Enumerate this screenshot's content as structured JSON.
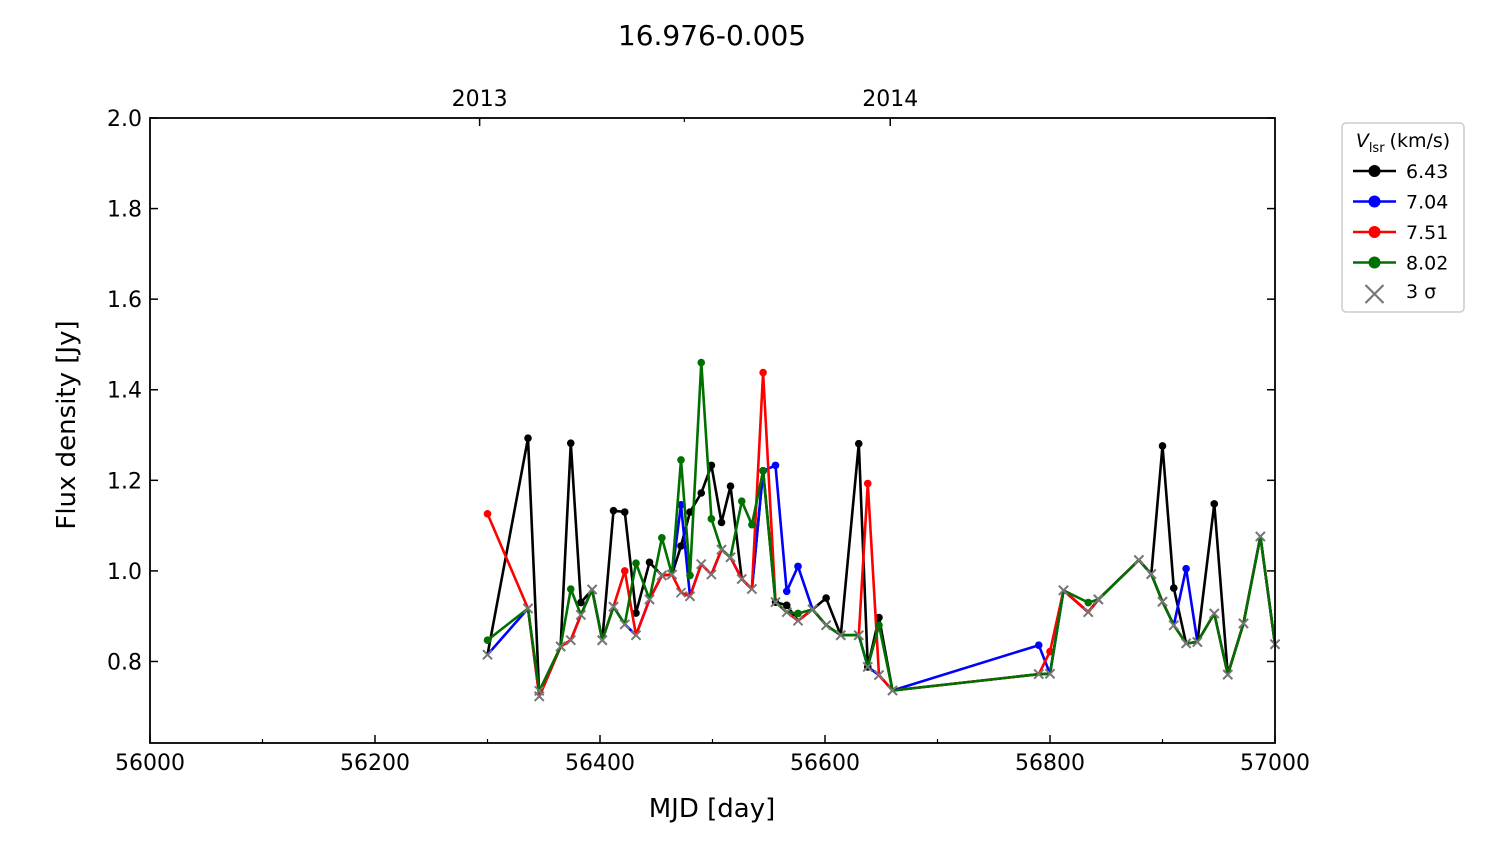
{
  "chart_data": {
    "type": "line",
    "title": "16.976-0.005",
    "xlabel": "MJD [day]",
    "ylabel": "Flux density [Jy]",
    "xlim": [
      56000,
      57000
    ],
    "ylim": [
      0.62,
      2.0
    ],
    "x_ticks": [
      56000,
      56200,
      56400,
      56600,
      56800,
      57000
    ],
    "x_minor_step": 100,
    "y_ticks": [
      0.8,
      1.0,
      1.2,
      1.4,
      1.6,
      1.8,
      2.0
    ],
    "y_tick_labels": [
      "0.8",
      "1.0",
      "1.2",
      "1.4",
      "1.6",
      "1.8",
      "2.0"
    ],
    "top_axis": {
      "ticks": [
        {
          "label": "2013",
          "mjd": 56293
        },
        {
          "label": "2014",
          "mjd": 56658
        }
      ],
      "minor": [
        56475
      ]
    },
    "legend": {
      "position": "outside-right-top",
      "title_symbol": "V",
      "title_subscript": "lsr",
      "title_unit": "(km/s)",
      "entries": [
        {
          "label": "6.43",
          "color": "#000000"
        },
        {
          "label": "7.04",
          "color": "#0000ff"
        },
        {
          "label": "7.51",
          "color": "#ff0000"
        },
        {
          "label": "8.02",
          "color": "#007000"
        }
      ],
      "sigma_label": "3 σ",
      "sigma_color": "#777777"
    },
    "grid": false,
    "series": [
      {
        "name": "6.43",
        "color": "#000000",
        "x": [
          56300,
          56336,
          56346,
          56365,
          56374,
          56383,
          56393,
          56402,
          56412,
          56422,
          56432,
          56444,
          56455,
          56464,
          56472,
          56480,
          56490,
          56499,
          56508,
          56516,
          56526,
          56535,
          56545,
          56556,
          56566,
          56576,
          56589,
          56601,
          56614,
          56630,
          56638,
          56648,
          56660,
          56790,
          56800,
          56812,
          56834,
          56843,
          56879,
          56890,
          56900,
          56910,
          56921,
          56931,
          56946,
          56958,
          56972,
          56987,
          57000
        ],
        "y": [
          0.815,
          1.293,
          0.723,
          0.833,
          1.282,
          0.93,
          0.959,
          0.847,
          1.133,
          1.13,
          0.907,
          1.019,
          0.99,
          0.992,
          1.055,
          1.13,
          1.172,
          1.233,
          1.107,
          1.187,
          0.982,
          0.96,
          1.221,
          0.931,
          0.924,
          0.89,
          0.915,
          0.94,
          0.858,
          1.281,
          0.788,
          0.897,
          0.736,
          0.772,
          0.773,
          0.957,
          0.909,
          0.937,
          1.024,
          0.993,
          1.276,
          0.962,
          0.84,
          0.843,
          1.148,
          0.771,
          0.884,
          1.076,
          0.838
        ],
        "sigma": [
          true,
          false,
          true,
          true,
          false,
          false,
          true,
          true,
          false,
          false,
          false,
          false,
          true,
          true,
          false,
          false,
          false,
          false,
          false,
          false,
          true,
          true,
          false,
          false,
          false,
          true,
          true,
          false,
          true,
          false,
          false,
          false,
          true,
          true,
          true,
          true,
          true,
          true,
          true,
          true,
          false,
          false,
          true,
          true,
          false,
          true,
          true,
          true,
          true
        ]
      },
      {
        "name": "7.04",
        "color": "#0000ff",
        "x": [
          56300,
          56336,
          56346,
          56365,
          56374,
          56383,
          56393,
          56402,
          56412,
          56422,
          56432,
          56444,
          56455,
          56464,
          56472,
          56480,
          56490,
          56499,
          56508,
          56516,
          56526,
          56535,
          56545,
          56556,
          56566,
          56576,
          56589,
          56601,
          56614,
          56630,
          56638,
          56648,
          56660,
          56790,
          56800,
          56812,
          56834,
          56843,
          56879,
          56890,
          56900,
          56910,
          56921,
          56931,
          56946,
          56958,
          56972,
          56987,
          57000
        ],
        "y": [
          0.815,
          0.917,
          0.723,
          0.833,
          0.847,
          0.903,
          0.959,
          0.847,
          0.921,
          0.882,
          0.858,
          0.937,
          0.99,
          0.992,
          1.146,
          0.944,
          1.015,
          0.992,
          1.047,
          1.03,
          0.982,
          0.96,
          1.221,
          1.233,
          0.955,
          1.01,
          0.915,
          0.88,
          0.858,
          0.858,
          0.788,
          0.77,
          0.736,
          0.836,
          0.773,
          0.957,
          0.909,
          0.937,
          1.024,
          0.993,
          0.932,
          0.88,
          1.005,
          0.843,
          0.906,
          0.771,
          0.884,
          1.076,
          0.838
        ],
        "sigma": [
          true,
          true,
          true,
          true,
          true,
          true,
          true,
          true,
          true,
          true,
          true,
          true,
          true,
          true,
          false,
          true,
          true,
          true,
          true,
          true,
          true,
          true,
          false,
          false,
          false,
          false,
          true,
          true,
          true,
          true,
          true,
          true,
          true,
          false,
          true,
          true,
          true,
          true,
          true,
          true,
          true,
          true,
          false,
          true,
          true,
          true,
          true,
          true,
          true
        ]
      },
      {
        "name": "7.51",
        "color": "#ff0000",
        "x": [
          56300,
          56336,
          56346,
          56365,
          56374,
          56383,
          56393,
          56402,
          56412,
          56422,
          56432,
          56444,
          56455,
          56464,
          56472,
          56480,
          56490,
          56499,
          56508,
          56516,
          56526,
          56535,
          56545,
          56556,
          56566,
          56576,
          56589,
          56601,
          56614,
          56630,
          56638,
          56648,
          56660,
          56790,
          56800,
          56812,
          56834,
          56843,
          56879,
          56890,
          56900,
          56910,
          56921,
          56931,
          56946,
          56958,
          56972,
          56987,
          57000
        ],
        "y": [
          1.126,
          0.917,
          0.723,
          0.833,
          0.847,
          0.903,
          0.959,
          0.847,
          0.921,
          1.0,
          0.858,
          0.937,
          0.99,
          0.992,
          0.952,
          0.944,
          1.015,
          0.992,
          1.047,
          1.03,
          0.982,
          0.96,
          1.438,
          0.931,
          0.909,
          0.89,
          0.915,
          0.88,
          0.858,
          0.858,
          1.193,
          0.77,
          0.736,
          0.772,
          0.822,
          0.957,
          0.909,
          0.937,
          1.024,
          0.993,
          0.932,
          0.88,
          0.84,
          0.843,
          0.906,
          0.771,
          0.884,
          1.076,
          0.838
        ],
        "sigma": [
          false,
          true,
          true,
          true,
          true,
          true,
          true,
          true,
          true,
          false,
          true,
          true,
          true,
          true,
          true,
          true,
          true,
          true,
          true,
          true,
          true,
          true,
          false,
          true,
          true,
          true,
          true,
          true,
          true,
          true,
          false,
          true,
          true,
          true,
          false,
          true,
          true,
          true,
          true,
          true,
          true,
          true,
          true,
          true,
          true,
          true,
          true,
          true,
          true
        ]
      },
      {
        "name": "8.02",
        "color": "#007000",
        "x": [
          56300,
          56336,
          56346,
          56365,
          56374,
          56383,
          56393,
          56402,
          56412,
          56422,
          56432,
          56444,
          56455,
          56464,
          56472,
          56480,
          56490,
          56499,
          56508,
          56516,
          56526,
          56535,
          56545,
          56556,
          56566,
          56576,
          56589,
          56601,
          56614,
          56630,
          56638,
          56648,
          56660,
          56790,
          56800,
          56812,
          56834,
          56843,
          56879,
          56890,
          56900,
          56910,
          56921,
          56931,
          56946,
          56958,
          56972,
          56987,
          57000
        ],
        "y": [
          0.847,
          0.917,
          0.735,
          0.833,
          0.96,
          0.903,
          0.959,
          0.847,
          0.921,
          0.882,
          1.017,
          0.937,
          1.073,
          0.992,
          1.245,
          0.99,
          1.46,
          1.115,
          1.047,
          1.03,
          1.154,
          1.102,
          1.221,
          0.931,
          0.909,
          0.906,
          0.915,
          0.88,
          0.858,
          0.858,
          0.788,
          0.88,
          0.736,
          0.772,
          0.773,
          0.957,
          0.93,
          0.937,
          1.024,
          0.993,
          0.932,
          0.88,
          0.84,
          0.843,
          0.906,
          0.771,
          0.884,
          1.076,
          0.838
        ],
        "sigma": [
          false,
          true,
          true,
          true,
          false,
          true,
          true,
          true,
          true,
          true,
          false,
          true,
          false,
          true,
          false,
          false,
          false,
          false,
          true,
          true,
          false,
          false,
          false,
          true,
          true,
          false,
          true,
          true,
          true,
          true,
          true,
          false,
          true,
          true,
          true,
          true,
          false,
          true,
          true,
          true,
          true,
          true,
          true,
          true,
          true,
          true,
          true,
          true,
          true
        ]
      }
    ]
  }
}
